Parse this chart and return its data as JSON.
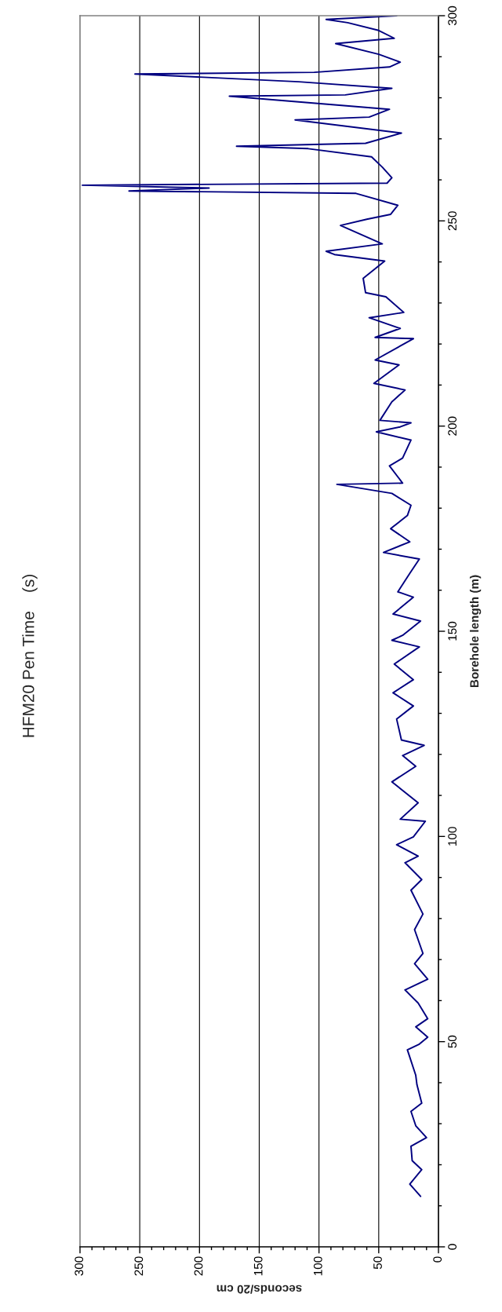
{
  "chart_data": {
    "type": "line",
    "title": "HFM20 Pen Time    (s)",
    "xlabel": "seconds/20 cm",
    "ylabel": "Borehole length (m)",
    "orientation": "horizontal",
    "x": [
      12.3,
      15.3,
      18.8,
      21,
      24.5,
      26.6,
      29.5,
      33,
      35,
      39.5,
      41.8,
      48,
      49.4,
      51.1,
      53.6,
      55.6,
      59.4,
      62.6,
      65.2,
      69,
      71.5,
      77.3,
      81.1,
      86.9,
      89.5,
      93.6,
      95.2,
      98,
      99.9,
      103.7,
      104.2,
      108.2,
      113.3,
      117.1,
      119.7,
      122.2,
      123.5,
      128.6,
      131.8,
      135,
      138.2,
      142,
      146.2,
      147.8,
      149,
      152.5,
      154.2,
      158.3,
      159.6,
      164.1,
      167.6,
      169.2,
      171.8,
      175,
      178.2,
      180.7,
      183.6,
      185.8,
      186.1,
      190.3,
      192.2,
      196.6,
      198.6,
      199.8,
      200.8,
      201.4,
      205.9,
      208.8,
      210.4,
      214.9,
      216.1,
      221.3,
      221.6,
      223.8,
      226.4,
      227.7,
      231.5,
      232.5,
      236,
      240.2,
      241.8,
      242.6,
      244.4,
      248.9,
      250.4,
      251.6,
      253.8,
      256.7,
      257.3,
      258,
      258.7,
      259.2,
      260.5,
      263.1,
      265.6,
      267.6,
      268.2,
      268.9,
      271.4,
      274.6,
      275.3,
      277.2,
      280.4,
      280.7,
      282.3,
      283.9,
      285.8,
      286.2,
      287.5,
      288.7,
      290.6,
      293.2,
      294.5,
      296.4,
      298.3,
      299.1,
      300
    ],
    "series": [
      {
        "color": "#000080",
        "values": [
          15,
          24,
          14,
          22,
          23,
          10,
          19,
          23,
          14,
          18,
          19,
          26,
          16,
          9,
          19,
          9,
          17,
          28,
          9,
          20,
          13,
          20,
          13,
          23,
          14,
          28,
          17,
          35,
          21,
          11,
          32,
          17,
          39,
          19,
          30,
          12,
          31,
          35,
          21,
          38,
          21,
          37,
          16,
          39,
          30,
          15,
          38,
          21,
          34,
          24,
          16,
          46,
          24,
          40,
          26,
          23,
          39,
          85,
          30,
          41,
          30,
          23,
          52,
          32,
          23,
          49,
          39,
          28,
          54,
          33,
          53,
          21,
          53,
          32,
          58,
          29,
          44,
          61,
          63,
          45,
          87,
          94,
          47,
          82,
          60,
          40,
          34,
          69,
          259,
          192,
          298,
          43,
          39,
          47,
          56,
          109,
          169,
          61,
          31,
          120,
          58,
          41,
          175,
          78,
          39,
          117,
          254,
          104,
          41,
          32,
          50,
          86,
          37,
          50,
          76,
          94,
          35
        ]
      }
    ],
    "xlim": [
      300,
      0
    ],
    "ylim": [
      0,
      300
    ],
    "xticks": [
      0,
      {
        "value": 10,
        "label": null
      },
      {
        "value": 20,
        "label": null
      },
      {
        "value": 30,
        "label": null
      },
      {
        "value": 40,
        "label": null
      },
      50,
      {
        "value": 60,
        "label": null
      },
      {
        "value": 70,
        "label": null
      },
      {
        "value": 80,
        "label": null
      },
      {
        "value": 90,
        "label": null
      },
      100,
      {
        "value": 110,
        "label": null
      },
      {
        "value": 120,
        "label": null
      },
      {
        "value": 130,
        "label": null
      },
      {
        "value": 140,
        "label": null
      },
      150,
      {
        "value": 160,
        "label": null
      },
      {
        "value": 170,
        "label": null
      },
      {
        "value": 180,
        "label": null
      },
      {
        "value": 190,
        "label": null
      },
      200,
      {
        "value": 210,
        "label": null
      },
      {
        "value": 220,
        "label": null
      },
      {
        "value": 230,
        "label": null
      },
      {
        "value": 240,
        "label": null
      },
      250,
      {
        "value": 260,
        "label": null
      },
      {
        "value": 270,
        "label": null
      },
      {
        "value": 280,
        "label": null
      },
      {
        "value": 290,
        "label": null
      },
      300
    ],
    "yticks": [
      0,
      {
        "value": 10,
        "label": null
      },
      {
        "value": 20,
        "label": null
      },
      {
        "value": 30,
        "label": null
      },
      {
        "value": 40,
        "label": null
      },
      50,
      {
        "value": 60,
        "label": null
      },
      {
        "value": 70,
        "label": null
      },
      {
        "value": 80,
        "label": null
      },
      {
        "value": 90,
        "label": null
      },
      100,
      {
        "value": 110,
        "label": null
      },
      {
        "value": 120,
        "label": null
      },
      {
        "value": 130,
        "label": null
      },
      {
        "value": 140,
        "label": null
      },
      150,
      {
        "value": 160,
        "label": null
      },
      {
        "value": 170,
        "label": null
      },
      {
        "value": 180,
        "label": null
      },
      {
        "value": 190,
        "label": null
      },
      200,
      {
        "value": 210,
        "label": null
      },
      {
        "value": 220,
        "label": null
      },
      {
        "value": 230,
        "label": null
      },
      {
        "value": 240,
        "label": null
      },
      250,
      {
        "value": 260,
        "label": null
      },
      {
        "value": 270,
        "label": null
      },
      {
        "value": 280,
        "label": null
      },
      {
        "value": 290,
        "label": null
      },
      300
    ],
    "grid": "x",
    "legend": false
  }
}
